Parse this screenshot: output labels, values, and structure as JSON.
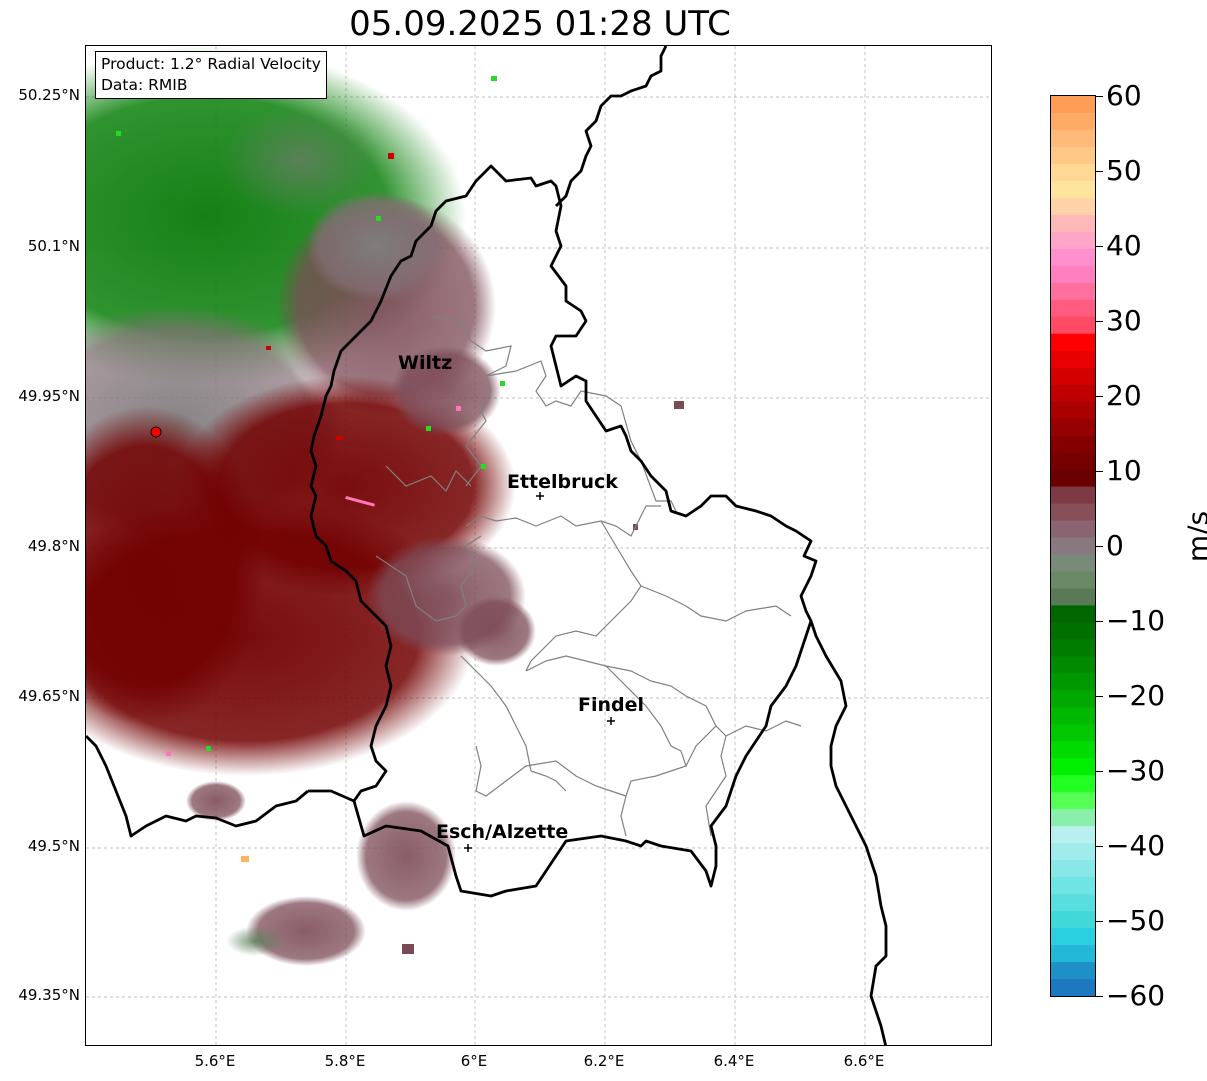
{
  "title": "05.09.2025 01:28 UTC",
  "info": {
    "product": "Product: 1.2° Radial Velocity",
    "data": "Data: RMIB"
  },
  "lat_labels": [
    "50.25°N",
    "50.1°N",
    "49.95°N",
    "49.8°N",
    "49.65°N",
    "49.5°N",
    "49.35°N"
  ],
  "lon_labels": [
    "5.6°E",
    "5.8°E",
    "6°E",
    "6.2°E",
    "6.4°E",
    "6.6°E"
  ],
  "cities": [
    {
      "name": "Wiltz"
    },
    {
      "name": "Ettelbruck"
    },
    {
      "name": "Findel"
    },
    {
      "name": "Esch/Alzette"
    }
  ],
  "colorbar": {
    "unit": "m/s",
    "ticks": [
      "60",
      "50",
      "40",
      "30",
      "20",
      "10",
      "0",
      "−10",
      "−20",
      "−30",
      "−40",
      "−50",
      "−60"
    ],
    "min": -60,
    "max": 60
  },
  "colors": {
    "strong_inbound_green": "#006400",
    "light_green": "#22ee22",
    "outbound_darkred": "#6b0000",
    "mauve": "#7a4a55",
    "neutral_grey": "#808080",
    "radar_site": "#ff0000",
    "border": "#000000"
  }
}
